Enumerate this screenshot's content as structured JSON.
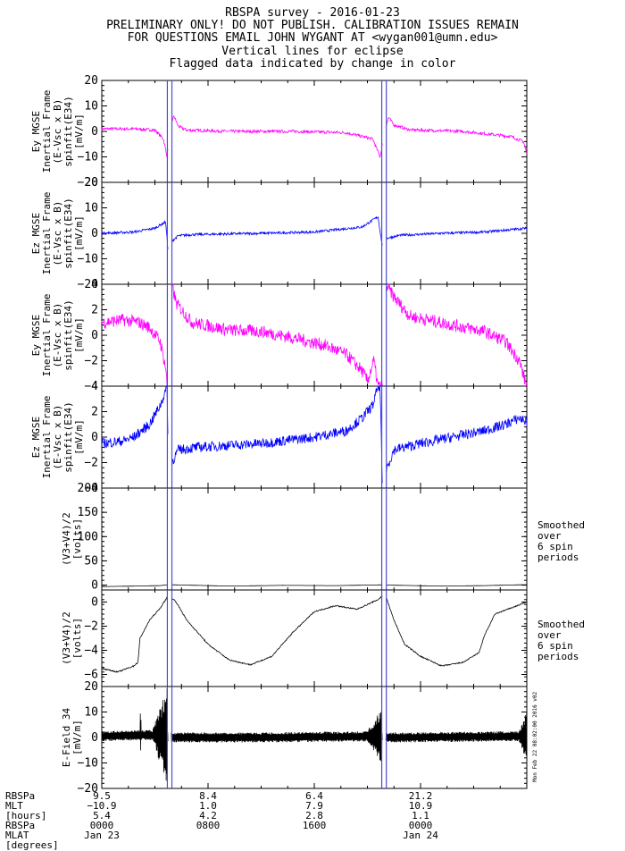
{
  "header": {
    "line1": "RBSPA survey - 2016-01-23",
    "line2": "PRELIMINARY ONLY! DO NOT PUBLISH. CALIBRATION ISSUES REMAIN",
    "line3": "FOR QUESTIONS EMAIL JOHN WYGANT AT <wygan001@umn.edu>",
    "line4": "Vertical lines for eclipse",
    "line5": "Flagged data indicated by change in color"
  },
  "colors": {
    "magenta": "#ff00ff",
    "blue": "#0000ff",
    "black": "#000000",
    "eclipse": "#4b4bd6"
  },
  "eclipse_windows": [
    [
      0.617,
      0.66
    ],
    [
      2.635,
      2.678
    ]
  ],
  "stamp": "Mon Feb 22 08:02:00 2016 v02",
  "chart_data": [
    {
      "type": "line",
      "series_color": "magenta",
      "ylim": [
        -20,
        20
      ],
      "yticks": [
        20,
        10,
        0,
        -10,
        -20
      ],
      "tick_labels": [
        "20",
        "10",
        "0",
        "−10",
        "−20"
      ],
      "ylabel_lines": [
        "Ey MGSE",
        "Inertial Frame",
        "(E-Vsc x B)",
        "spinfit(E34)",
        "[mV/m]"
      ],
      "side_note": [],
      "knots": [
        [
          0,
          1.0
        ],
        [
          0.3,
          1.0
        ],
        [
          0.5,
          0.5
        ],
        [
          0.58,
          -3.0
        ],
        [
          0.615,
          -10.0
        ],
        [
          0.64,
          2.0
        ],
        [
          0.68,
          6.0
        ],
        [
          0.72,
          2.0
        ],
        [
          0.8,
          0.5
        ],
        [
          1.2,
          0.0
        ],
        [
          1.8,
          0.0
        ],
        [
          2.3,
          -0.5
        ],
        [
          2.55,
          -3.0
        ],
        [
          2.62,
          -10.0
        ],
        [
          2.66,
          0.0
        ],
        [
          2.7,
          5.5
        ],
        [
          2.75,
          2.5
        ],
        [
          2.9,
          0.6
        ],
        [
          3.4,
          0.0
        ],
        [
          3.85,
          -2.0
        ],
        [
          3.97,
          -4.0
        ],
        [
          4.0,
          -9.0
        ]
      ],
      "noise": 0.6
    },
    {
      "type": "line",
      "series_color": "blue",
      "ylim": [
        -20,
        20
      ],
      "yticks": [
        20,
        10,
        0,
        -10,
        -20
      ],
      "tick_labels": [
        "20",
        "10",
        "0",
        "−10",
        "−20"
      ],
      "ylabel_lines": [
        "Ez MGSE",
        "Inertial Frame",
        "(E-Vsc x B)",
        "spinfit(E34)",
        "[mV/m]"
      ],
      "side_note": [],
      "knots": [
        [
          0,
          0.0
        ],
        [
          0.3,
          0.5
        ],
        [
          0.5,
          2.0
        ],
        [
          0.6,
          4.5
        ],
        [
          0.63,
          -9.5
        ],
        [
          0.66,
          -3.0
        ],
        [
          0.72,
          -1.0
        ],
        [
          0.85,
          -0.5
        ],
        [
          1.5,
          0.0
        ],
        [
          2.0,
          0.5
        ],
        [
          2.45,
          2.5
        ],
        [
          2.6,
          6.5
        ],
        [
          2.64,
          -5.0
        ],
        [
          2.68,
          -2.0
        ],
        [
          2.8,
          -0.8
        ],
        [
          3.2,
          0.0
        ],
        [
          3.6,
          0.5
        ],
        [
          4.0,
          2.0
        ]
      ],
      "noise": 0.5
    },
    {
      "type": "line",
      "series_color": "magenta",
      "ylim": [
        -4,
        4
      ],
      "yticks": [
        4,
        2,
        0,
        -2,
        -4
      ],
      "tick_labels": [
        "4",
        "2",
        "0",
        "−2",
        "−4"
      ],
      "ylabel_lines": [
        "Ey MGSE",
        "Inertial Frame",
        "(E-Vsc x B)",
        "spinfit(E34)",
        "[mV/m]"
      ],
      "side_note": [],
      "knots": [
        [
          0,
          1.0
        ],
        [
          0.2,
          1.2
        ],
        [
          0.35,
          1.0
        ],
        [
          0.45,
          0.6
        ],
        [
          0.55,
          -0.5
        ],
        [
          0.6,
          -2.5
        ],
        [
          0.615,
          -4.0
        ],
        [
          0.63,
          -4.0
        ],
        [
          0.66,
          4.0
        ],
        [
          0.7,
          2.5
        ],
        [
          0.85,
          1.0
        ],
        [
          1.2,
          0.4
        ],
        [
          1.5,
          0.3
        ],
        [
          1.8,
          -0.2
        ],
        [
          2.1,
          -0.8
        ],
        [
          2.3,
          -1.5
        ],
        [
          2.45,
          -2.8
        ],
        [
          2.5,
          -3.6
        ],
        [
          2.56,
          -2.0
        ],
        [
          2.6,
          -4.0
        ],
        [
          2.64,
          -4.0
        ],
        [
          2.67,
          4.0
        ],
        [
          2.75,
          3.0
        ],
        [
          2.9,
          1.5
        ],
        [
          3.3,
          0.8
        ],
        [
          3.6,
          0.3
        ],
        [
          3.8,
          -0.5
        ],
        [
          3.93,
          -2.0
        ],
        [
          3.98,
          -3.5
        ],
        [
          4.0,
          -4.0
        ]
      ],
      "noise": 0.5
    },
    {
      "type": "line",
      "series_color": "blue",
      "ylim": [
        -4,
        4
      ],
      "yticks": [
        4,
        2,
        0,
        -2,
        -4
      ],
      "tick_labels": [
        "4",
        "2",
        "0",
        "−2",
        "−4"
      ],
      "ylabel_lines": [
        "Ez MGSE",
        "Inertial Frame",
        "(E-Vsc x B)",
        "spinfit(E34)",
        "[mV/m]"
      ],
      "side_note": [],
      "knots": [
        [
          0,
          -0.5
        ],
        [
          0.2,
          -0.3
        ],
        [
          0.3,
          0.0
        ],
        [
          0.45,
          1.0
        ],
        [
          0.55,
          2.5
        ],
        [
          0.6,
          3.6
        ],
        [
          0.615,
          4.0
        ],
        [
          0.63,
          -4.0
        ],
        [
          0.66,
          -2.0
        ],
        [
          0.72,
          -1.0
        ],
        [
          0.9,
          -0.8
        ],
        [
          1.5,
          -0.5
        ],
        [
          2.0,
          0.0
        ],
        [
          2.3,
          0.5
        ],
        [
          2.45,
          1.5
        ],
        [
          2.55,
          2.5
        ],
        [
          2.6,
          4.0
        ],
        [
          2.62,
          4.0
        ],
        [
          2.64,
          -4.0
        ],
        [
          2.68,
          -2.5
        ],
        [
          2.75,
          -1.0
        ],
        [
          3.0,
          -0.5
        ],
        [
          3.3,
          0.0
        ],
        [
          3.6,
          0.5
        ],
        [
          3.8,
          1.0
        ],
        [
          3.93,
          1.5
        ],
        [
          4.0,
          1.2
        ]
      ],
      "noise": 0.4
    },
    {
      "type": "line",
      "series_color": "black",
      "ylim": [
        -10,
        200
      ],
      "yticks": [
        200,
        150,
        100,
        50,
        0
      ],
      "tick_labels": [
        "200",
        "150",
        "100",
        "50",
        "0"
      ],
      "ylabel_lines": [
        "(V3+V4)/2",
        "[volts]"
      ],
      "side_note": [
        "Smoothed",
        "over",
        "6 spin",
        "periods"
      ],
      "knots": [
        [
          0,
          -3.0
        ],
        [
          0.3,
          -2.0
        ],
        [
          0.55,
          -1.0
        ],
        [
          0.63,
          1.0
        ],
        [
          0.7,
          0.5
        ],
        [
          1.2,
          -2.0
        ],
        [
          1.7,
          -0.5
        ],
        [
          2.2,
          -1.0
        ],
        [
          2.62,
          0.5
        ],
        [
          2.7,
          0.0
        ],
        [
          3.2,
          -2.0
        ],
        [
          3.6,
          -1.0
        ],
        [
          4.0,
          1.0
        ]
      ],
      "noise": 0.0
    },
    {
      "type": "line",
      "series_color": "black",
      "ylim": [
        -7,
        1
      ],
      "yticks": [
        0,
        -2,
        -4,
        -6
      ],
      "tick_labels": [
        "0",
        "−2",
        "−4",
        "−6"
      ],
      "ylabel_lines": [
        "(V3+V4)/2",
        "[volts]"
      ],
      "side_note": [
        "Smoothed",
        "over",
        "6 spin",
        "periods"
      ],
      "knots": [
        [
          0,
          -5.5
        ],
        [
          0.15,
          -5.8
        ],
        [
          0.3,
          -5.3
        ],
        [
          0.34,
          -5.0
        ],
        [
          0.36,
          -3.0
        ],
        [
          0.45,
          -1.5
        ],
        [
          0.55,
          -0.5
        ],
        [
          0.63,
          0.6
        ],
        [
          0.7,
          0.0
        ],
        [
          0.8,
          -1.5
        ],
        [
          1.0,
          -3.5
        ],
        [
          1.2,
          -4.8
        ],
        [
          1.4,
          -5.2
        ],
        [
          1.6,
          -4.5
        ],
        [
          1.8,
          -2.5
        ],
        [
          2.0,
          -0.8
        ],
        [
          2.2,
          -0.3
        ],
        [
          2.4,
          -0.6
        ],
        [
          2.6,
          0.2
        ],
        [
          2.64,
          0.5
        ],
        [
          2.68,
          0.3
        ],
        [
          2.75,
          -1.5
        ],
        [
          2.85,
          -3.5
        ],
        [
          3.0,
          -4.5
        ],
        [
          3.2,
          -5.3
        ],
        [
          3.4,
          -5.0
        ],
        [
          3.55,
          -4.2
        ],
        [
          3.6,
          -2.8
        ],
        [
          3.7,
          -1.0
        ],
        [
          3.85,
          -0.5
        ],
        [
          4.0,
          0.0
        ]
      ],
      "noise": 0.05
    },
    {
      "type": "line",
      "series_color": "black",
      "ylim": [
        -20,
        20
      ],
      "yticks": [
        20,
        10,
        0,
        -10,
        -20
      ],
      "tick_labels": [
        "20",
        "10",
        "0",
        "−10",
        "−20"
      ],
      "ylabel_lines": [
        "E-Field 34",
        "[mV/m]"
      ],
      "side_note": [],
      "knots": [
        [
          0,
          0.5
        ],
        [
          0.5,
          1.0
        ],
        [
          0.6,
          0.5
        ],
        [
          0.68,
          0.0
        ],
        [
          1.5,
          0.0
        ],
        [
          2.6,
          0.5
        ],
        [
          2.7,
          0.0
        ],
        [
          4.0,
          0.5
        ]
      ],
      "noise": 1.5
    }
  ],
  "footer": {
    "labels": [
      "RBSPa",
      "MLT",
      "[hours]",
      "RBSPa",
      "MLAT",
      "[degrees]"
    ],
    "columns": [
      {
        "pos": 0.0,
        "rows": [
          "9.5",
          "−10.9",
          "5.4",
          "0000",
          "Jan 23"
        ]
      },
      {
        "pos": 1.0,
        "rows": [
          "8.4",
          "1.0",
          "4.2",
          "0800",
          ""
        ]
      },
      {
        "pos": 2.0,
        "rows": [
          "6.4",
          "7.9",
          "2.8",
          "1600",
          ""
        ]
      },
      {
        "pos": 3.0,
        "rows": [
          "21.2",
          "10.9",
          "1.1",
          "0000",
          "Jan 24"
        ]
      }
    ]
  }
}
